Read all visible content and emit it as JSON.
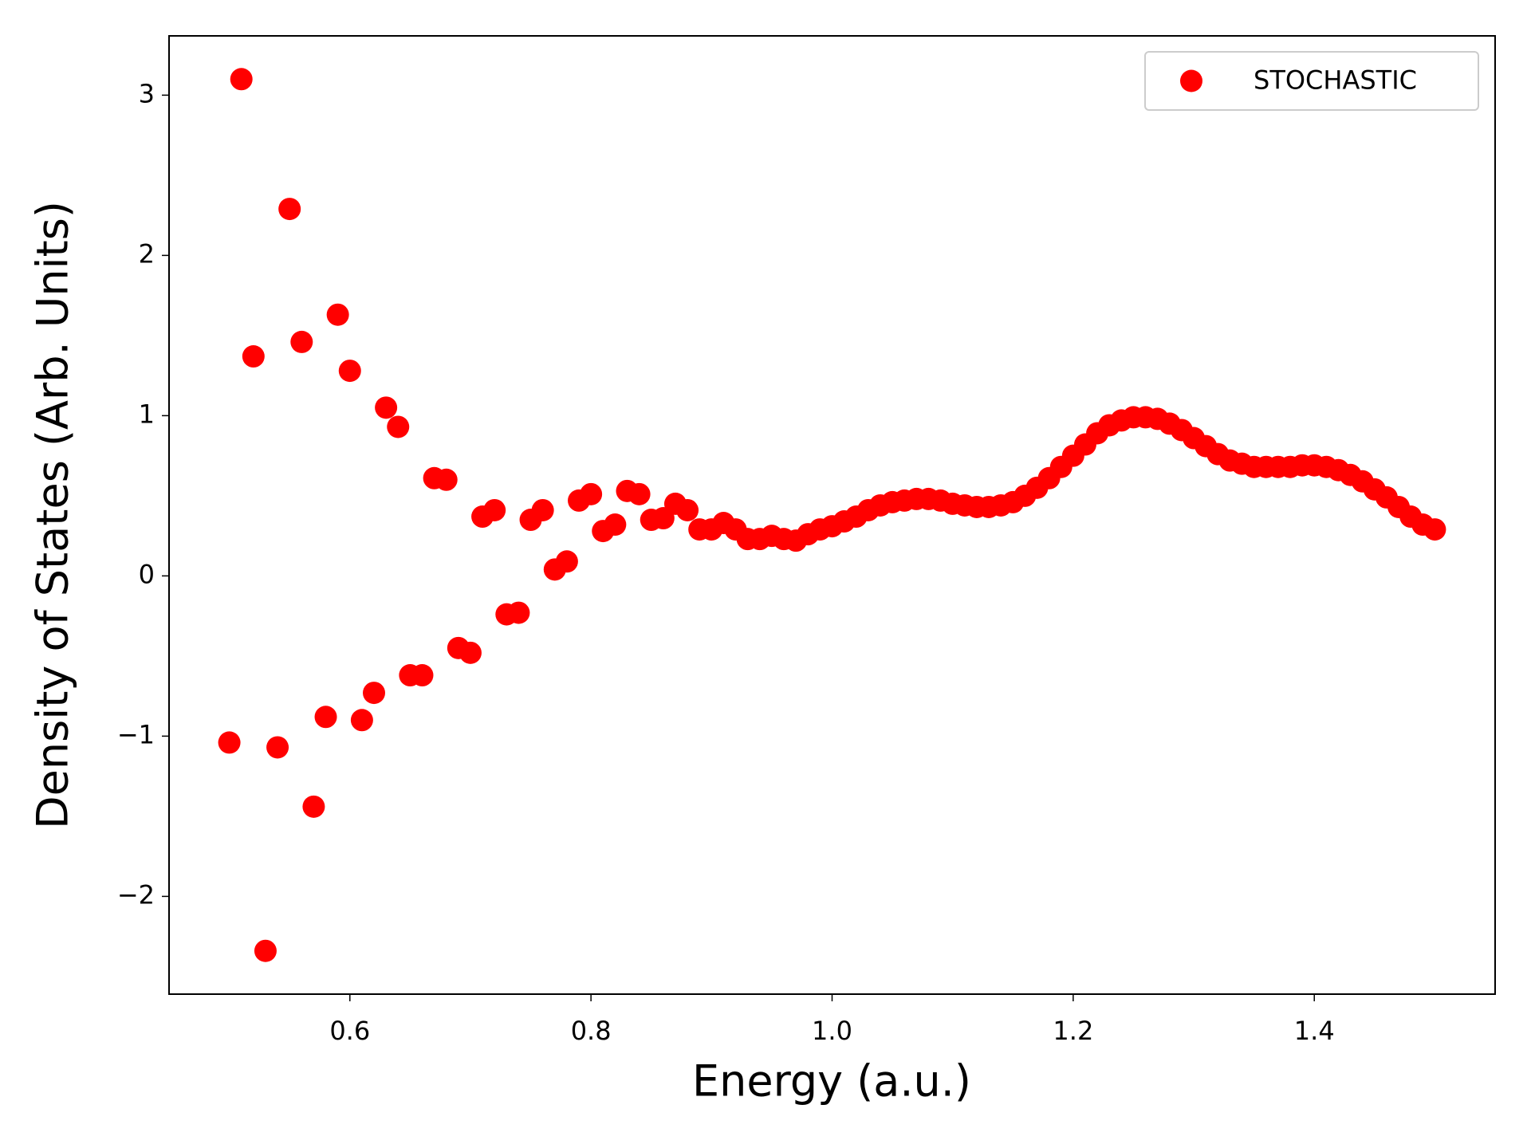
{
  "chart_data": {
    "type": "scatter",
    "x_label": "Energy (a.u.)",
    "y_label": "Density of States (Arb. Units)",
    "xlim": [
      0.45,
      1.55
    ],
    "ylim": [
      -2.61,
      3.37
    ],
    "xticks": [
      0.6,
      0.8,
      {
        "value": 1.0,
        "label": "1.0"
      },
      1.2,
      1.4
    ],
    "yticks": [
      {
        "value": -2,
        "label": "−2"
      },
      {
        "value": -1,
        "label": "−1"
      },
      0,
      1,
      2,
      3
    ],
    "grid": false,
    "legend": "upper right",
    "series": [
      {
        "name": "STOCHASTIC",
        "color": "#ff0000",
        "x": [
          0.5,
          0.51,
          0.52,
          0.53,
          0.54,
          0.55,
          0.56,
          0.57,
          0.58,
          0.59,
          0.6,
          0.61,
          0.62,
          0.63,
          0.64,
          0.65,
          0.66,
          0.67,
          0.68,
          0.69,
          0.7,
          0.71,
          0.72,
          0.73,
          0.74,
          0.75,
          0.76,
          0.77,
          0.78,
          0.79,
          0.8,
          0.81,
          0.82,
          0.83,
          0.84,
          0.85,
          0.86,
          0.87,
          0.88,
          0.89,
          0.9,
          0.91,
          0.92,
          0.93,
          0.94,
          0.95,
          0.96,
          0.97,
          0.98,
          0.99,
          1.0,
          1.01,
          1.02,
          1.03,
          1.04,
          1.05,
          1.06,
          1.07,
          1.08,
          1.09,
          1.1,
          1.11,
          1.12,
          1.13,
          1.14,
          1.15,
          1.16,
          1.17,
          1.18,
          1.19,
          1.2,
          1.21,
          1.22,
          1.23,
          1.24,
          1.25,
          1.26,
          1.27,
          1.28,
          1.29,
          1.3,
          1.31,
          1.32,
          1.33,
          1.34,
          1.35,
          1.36,
          1.37,
          1.38,
          1.39,
          1.4,
          1.41,
          1.42,
          1.43,
          1.44,
          1.45,
          1.46,
          1.47,
          1.48,
          1.49,
          1.5
        ],
        "values": [
          -1.04,
          3.1,
          1.37,
          -2.34,
          -1.07,
          2.29,
          1.46,
          -1.44,
          -0.88,
          1.63,
          1.28,
          -0.9,
          -0.73,
          1.05,
          0.93,
          -0.62,
          -0.62,
          0.61,
          0.6,
          -0.45,
          -0.48,
          0.37,
          0.41,
          -0.24,
          -0.23,
          0.35,
          0.41,
          0.04,
          0.09,
          0.47,
          0.51,
          0.28,
          0.32,
          0.53,
          0.51,
          0.35,
          0.36,
          0.45,
          0.41,
          0.29,
          0.29,
          0.33,
          0.29,
          0.23,
          0.23,
          0.25,
          0.23,
          0.22,
          0.26,
          0.29,
          0.31,
          0.34,
          0.37,
          0.41,
          0.44,
          0.46,
          0.47,
          0.48,
          0.48,
          0.47,
          0.45,
          0.44,
          0.43,
          0.43,
          0.44,
          0.46,
          0.5,
          0.55,
          0.61,
          0.68,
          0.75,
          0.82,
          0.89,
          0.94,
          0.97,
          0.99,
          0.99,
          0.98,
          0.95,
          0.91,
          0.86,
          0.81,
          0.76,
          0.72,
          0.7,
          0.68,
          0.68,
          0.68,
          0.68,
          0.69,
          0.69,
          0.68,
          0.66,
          0.63,
          0.59,
          0.54,
          0.49,
          0.43,
          0.37,
          0.32,
          0.29
        ]
      }
    ]
  }
}
